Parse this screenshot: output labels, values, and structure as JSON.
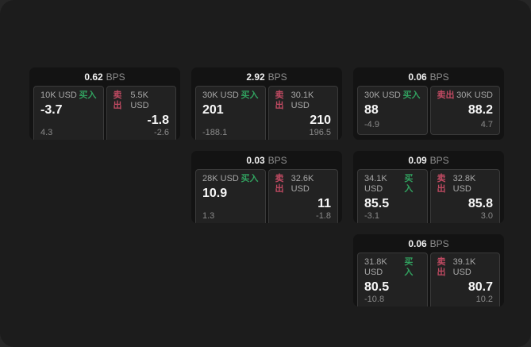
{
  "app": {
    "background_color": "#1c1c1c",
    "card_color": "#131313",
    "buy_color": "#31a15f",
    "sell_color": "#c04a62"
  },
  "cards": [
    {
      "bps": "0.62",
      "bps_unit": "BPS",
      "buy": {
        "amount": "10K USD",
        "label": "买入",
        "price": "-3.7",
        "delta": "4.3"
      },
      "sell": {
        "label": "卖出",
        "amount": "5.5K USD",
        "price": "-1.8",
        "delta": "-2.6"
      }
    },
    {
      "bps": "2.92",
      "bps_unit": "BPS",
      "buy": {
        "amount": "30K USD",
        "label": "买入",
        "price": "201",
        "delta": "-188.1"
      },
      "sell": {
        "label": "卖出",
        "amount": "30.1K USD",
        "price": "210",
        "delta": "196.5"
      }
    },
    {
      "bps": "0.06",
      "bps_unit": "BPS",
      "buy": {
        "amount": "30K USD",
        "label": "买入",
        "price": "88",
        "delta": "-4.9"
      },
      "sell": {
        "label": "卖出",
        "amount": "30K USD",
        "price": "88.2",
        "delta": "4.7"
      }
    },
    {
      "bps": "0.03",
      "bps_unit": "BPS",
      "buy": {
        "amount": "28K USD",
        "label": "买入",
        "price": "10.9",
        "delta": "1.3"
      },
      "sell": {
        "label": "卖出",
        "amount": "32.6K USD",
        "price": "11",
        "delta": "-1.8"
      }
    },
    {
      "bps": "0.09",
      "bps_unit": "BPS",
      "buy": {
        "amount": "34.1K USD",
        "label": "买入",
        "price": "85.5",
        "delta": "-3.1"
      },
      "sell": {
        "label": "卖出",
        "amount": "32.8K USD",
        "price": "85.8",
        "delta": "3.0"
      }
    },
    {
      "bps": "0.06",
      "bps_unit": "BPS",
      "buy": {
        "amount": "31.8K USD",
        "label": "买入",
        "price": "80.5",
        "delta": "-10.8"
      },
      "sell": {
        "label": "卖出",
        "amount": "39.1K USD",
        "price": "80.7",
        "delta": "10.2"
      }
    }
  ]
}
